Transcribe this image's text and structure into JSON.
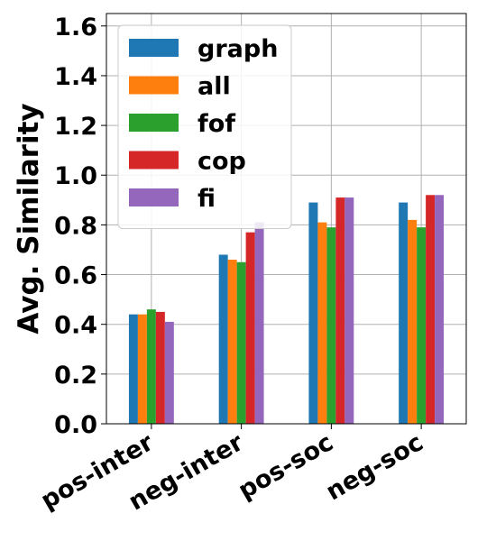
{
  "chart_data": {
    "type": "bar",
    "title": "",
    "xlabel": "",
    "ylabel": "Avg. Similarity",
    "ylim": [
      0,
      1.65
    ],
    "yticks": [
      0.0,
      0.2,
      0.4,
      0.6,
      0.8,
      1.0,
      1.2,
      1.4,
      1.6
    ],
    "ytick_labels": [
      "0.0",
      "0.2",
      "0.4",
      "0.6",
      "0.8",
      "1.0",
      "1.2",
      "1.4",
      "1.6"
    ],
    "categories": [
      "pos-inter",
      "neg-inter",
      "pos-soc",
      "neg-soc"
    ],
    "grid": true,
    "legend_position": "top-left",
    "series": [
      {
        "name": "graph",
        "color": "#1f77b4",
        "values": [
          0.44,
          0.68,
          0.89,
          0.89
        ]
      },
      {
        "name": "all",
        "color": "#ff7f0e",
        "values": [
          0.44,
          0.66,
          0.81,
          0.82
        ]
      },
      {
        "name": "fof",
        "color": "#2ca02c",
        "values": [
          0.46,
          0.65,
          0.79,
          0.79
        ]
      },
      {
        "name": "cop",
        "color": "#d62728",
        "values": [
          0.45,
          0.77,
          0.91,
          0.92
        ]
      },
      {
        "name": "fi",
        "color": "#9467bd",
        "values": [
          0.41,
          0.81,
          0.91,
          0.92
        ]
      }
    ]
  }
}
